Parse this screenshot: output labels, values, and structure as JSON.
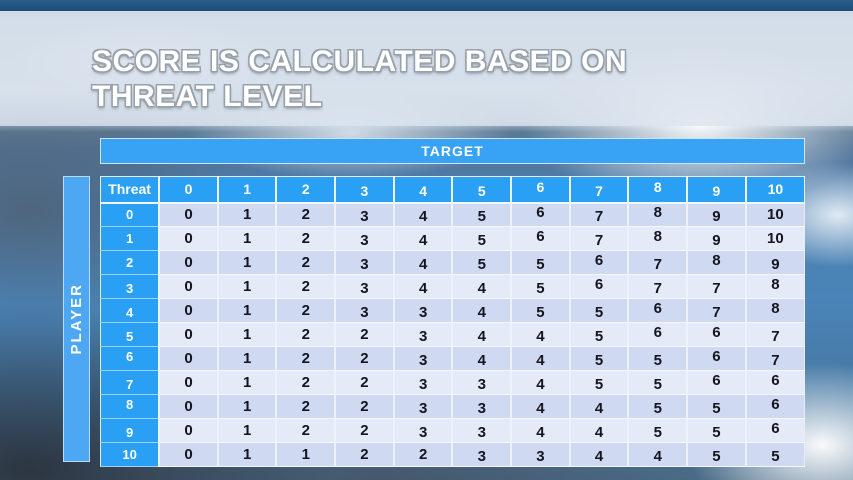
{
  "slide": {
    "title_line1": "SCORE IS CALCULATED BASED ON",
    "title_line2": "THREAT LEVEL"
  },
  "matrix": {
    "target_label": "TARGET",
    "player_label": "PLAYER",
    "corner_label": "Threat",
    "column_headers": [
      "0",
      "1",
      "2",
      "3",
      "4",
      "5",
      "6",
      "7",
      "8",
      "9",
      "10"
    ],
    "row_headers": [
      "0",
      "1",
      "2",
      "3",
      "4",
      "5",
      "6",
      "7",
      "8",
      "9",
      "10"
    ],
    "rows": [
      [
        0,
        1,
        2,
        3,
        4,
        5,
        6,
        7,
        8,
        9,
        10
      ],
      [
        0,
        1,
        2,
        3,
        4,
        5,
        6,
        7,
        8,
        9,
        10
      ],
      [
        0,
        1,
        2,
        3,
        4,
        5,
        5,
        6,
        7,
        8,
        9
      ],
      [
        0,
        1,
        2,
        3,
        4,
        4,
        5,
        6,
        7,
        7,
        8
      ],
      [
        0,
        1,
        2,
        3,
        3,
        4,
        5,
        5,
        6,
        7,
        8
      ],
      [
        0,
        1,
        2,
        2,
        3,
        4,
        4,
        5,
        6,
        6,
        7
      ],
      [
        0,
        1,
        2,
        2,
        3,
        4,
        4,
        5,
        5,
        6,
        7
      ],
      [
        0,
        1,
        2,
        2,
        3,
        3,
        4,
        5,
        5,
        6,
        6
      ],
      [
        0,
        1,
        2,
        2,
        3,
        3,
        4,
        4,
        5,
        5,
        6
      ],
      [
        0,
        1,
        2,
        2,
        3,
        3,
        4,
        4,
        5,
        5,
        6
      ],
      [
        0,
        1,
        1,
        2,
        2,
        3,
        3,
        4,
        4,
        5,
        5
      ]
    ]
  },
  "colors": {
    "header_blue": "#29a0f3",
    "target_bar_blue": "#38a2f4",
    "player_bar_blue": "#4ea7f2",
    "row_even": "#cfd9f1",
    "row_odd": "#e5eaf8",
    "cell_text": "#15151f",
    "top_strip": "#1d4c77",
    "title_text": "#ffffff"
  }
}
